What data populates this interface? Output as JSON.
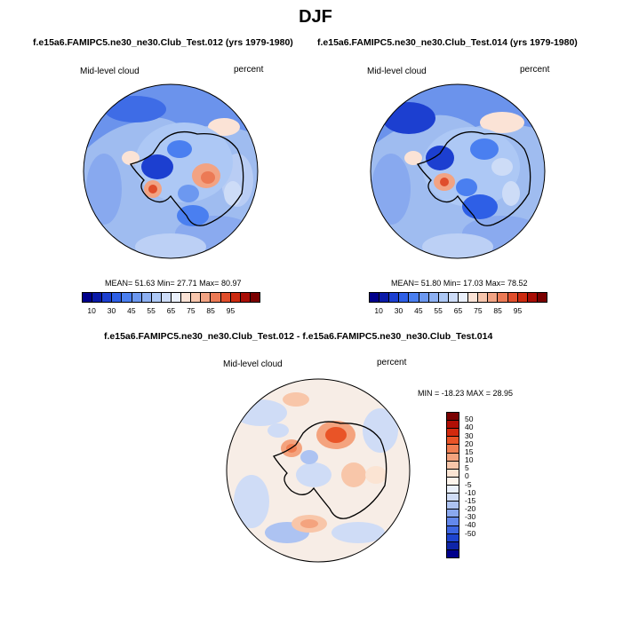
{
  "figure": {
    "title": "DJF",
    "variable": "Mid-level cloud",
    "units": "percent"
  },
  "panel_left": {
    "subtitle": "f.e15a6.FAMIPC5.ne30_ne30.Club_Test.012 (yrs 1979-1980)",
    "label": "Mid-level cloud",
    "units": "percent",
    "mean_label": "MEAN=",
    "mean": "51.63",
    "min_label": "Min=",
    "min": "27.71",
    "max_label": "Max=",
    "max": "80.97"
  },
  "panel_right": {
    "subtitle": "f.e15a6.FAMIPC5.ne30_ne30.Club_Test.014 (yrs 1979-1980)",
    "label": "Mid-level cloud",
    "units": "percent",
    "mean_label": "MEAN=",
    "mean": "51.80",
    "min_label": "Min=",
    "min": "17.03",
    "max_label": "Max=",
    "max": "78.52"
  },
  "panel_diff": {
    "subtitle": "f.e15a6.FAMIPC5.ne30_ne30.Club_Test.012 - f.e15a6.FAMIPC5.ne30_ne30.Club_Test.014",
    "label": "Mid-level cloud",
    "units": "percent",
    "minmax_text": "MIN = -18.23 MAX =  28.95"
  },
  "colorbar_abs": {
    "colors": [
      "#00008b",
      "#0a1aa8",
      "#1c3fd0",
      "#2e5fe6",
      "#4a7ff0",
      "#6c98f0",
      "#8db0f2",
      "#adc8f5",
      "#cddcf7",
      "#eaf0fb",
      "#fbe3d6",
      "#f7c6ad",
      "#f2a383",
      "#ec7a55",
      "#e04e2c",
      "#cc2a10",
      "#a80d05",
      "#7a0000"
    ],
    "tick_labels": [
      "10",
      "30",
      "45",
      "55",
      "65",
      "75",
      "85",
      "95"
    ]
  },
  "colorbar_diff": {
    "colors": [
      "#7a0000",
      "#b00f05",
      "#d32a0e",
      "#e95427",
      "#f07e52",
      "#f4a37e",
      "#f8c6a9",
      "#fbe4d3",
      "#fdf4ec",
      "#eaf0fb",
      "#cfdcf6",
      "#adc3f2",
      "#8aa8ee",
      "#6388eb",
      "#3d66e2",
      "#1e44cf",
      "#0e25a8",
      "#00008b"
    ],
    "labels": [
      "50",
      "40",
      "30",
      "20",
      "15",
      "10",
      "5",
      "0",
      "-5",
      "-10",
      "-15",
      "-20",
      "-30",
      "-40",
      "-50"
    ]
  },
  "map_colors": {
    "background_abs": "#a9c3f1",
    "background_diff": "#f6ece6",
    "land_outline": "#000000"
  }
}
